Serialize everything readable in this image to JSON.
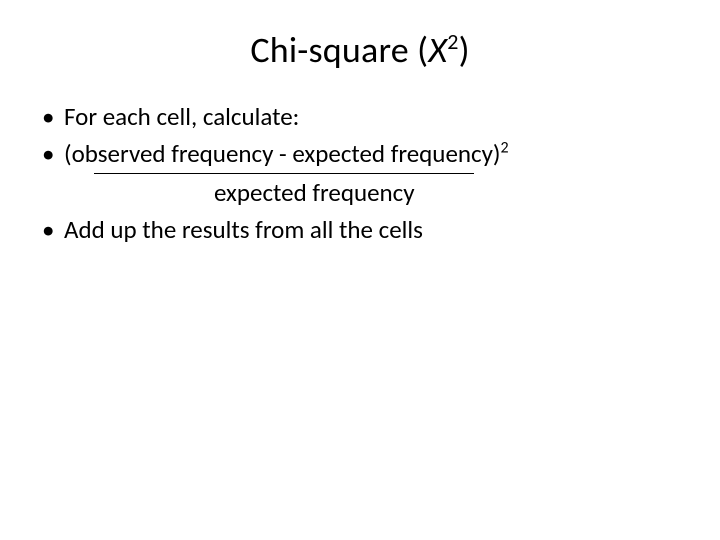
{
  "title": {
    "prefix": "Chi-square (",
    "italic_letter": "X",
    "superscript": "2",
    "suffix": ")"
  },
  "bullets": {
    "b1": "For each cell, calculate:",
    "b2_main": "(observed frequency - expected frequency)",
    "b2_sup": "2",
    "denom": "expected frequency",
    "b3": "Add up the results from all the cells"
  },
  "styling": {
    "background_color": "#ffffff",
    "text_color": "#000000",
    "title_fontsize": 36,
    "body_fontsize": 25,
    "frac_line_width": 380
  }
}
